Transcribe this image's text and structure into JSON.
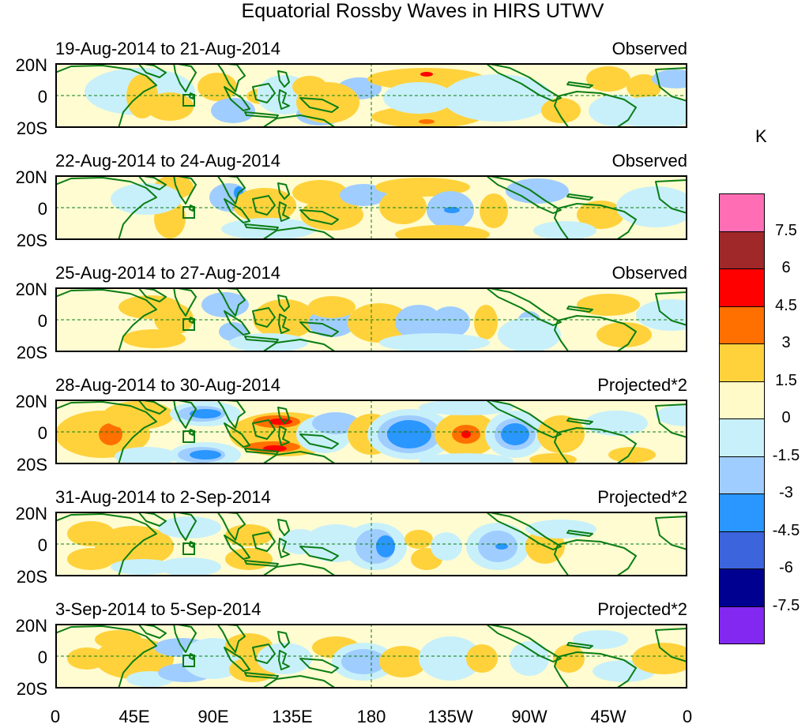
{
  "title": "Equatorial Rossby Waves in HIRS UTWV",
  "panels": [
    {
      "date": "19-Aug-2014 to 21-Aug-2014",
      "kind": "Observed"
    },
    {
      "date": "22-Aug-2014 to 24-Aug-2014",
      "kind": "Observed"
    },
    {
      "date": "25-Aug-2014 to 27-Aug-2014",
      "kind": "Observed"
    },
    {
      "date": "28-Aug-2014 to 30-Aug-2014",
      "kind": "Projected*2"
    },
    {
      "date": "31-Aug-2014 to 2-Sep-2014",
      "kind": "Projected*2"
    },
    {
      "date": "3-Sep-2014 to 5-Sep-2014",
      "kind": "Projected*2"
    }
  ],
  "lat_labels": [
    "20N",
    "0",
    "20S"
  ],
  "lon_labels": [
    "0",
    "45E",
    "90E",
    "135E",
    "180",
    "135W",
    "90W",
    "45W",
    "0"
  ],
  "legend": {
    "unit": "K",
    "labels": [
      "7.5",
      "6",
      "4.5",
      "3",
      "1.5",
      "0",
      "-1.5",
      "-3",
      "-4.5",
      "-6",
      "-7.5"
    ],
    "colors": [
      "#ff6eb4",
      "#a02828",
      "#ff0000",
      "#ff7000",
      "#ffd23c",
      "#fffac8",
      "#c8f0fa",
      "#a0cdff",
      "#2a96ff",
      "#3c64dc",
      "#000090",
      "#8228f0"
    ]
  },
  "colors": {
    "land": "#0a7d14",
    "background": "#fffcd2",
    "guides": "#0a7d14"
  }
}
